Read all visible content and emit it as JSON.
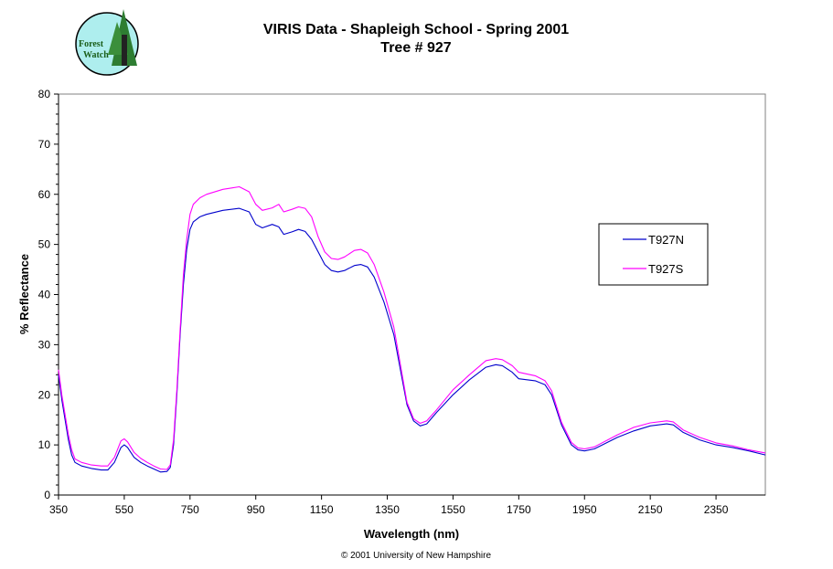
{
  "logo": {
    "line1": "Forest",
    "line2": "Watch",
    "icon": "forest-watch-logo"
  },
  "chart_data": {
    "type": "line",
    "title": "VIRIS Data - Shapleigh School - Spring 2001",
    "subtitle": "Tree # 927",
    "xlabel": "Wavelength (nm)",
    "ylabel": "% Reflectance",
    "xlim": [
      350,
      2500
    ],
    "ylim": [
      0,
      80
    ],
    "x_ticks": [
      350,
      550,
      750,
      950,
      1150,
      1350,
      1550,
      1750,
      1950,
      2150,
      2350
    ],
    "y_ticks": [
      0,
      10,
      20,
      30,
      40,
      50,
      60,
      70,
      80
    ],
    "grid": false,
    "legend_position": "right",
    "series": [
      {
        "name": "T927N",
        "color": "#0000cc",
        "points": [
          [
            350,
            24
          ],
          [
            360,
            19
          ],
          [
            370,
            15
          ],
          [
            380,
            11
          ],
          [
            390,
            8
          ],
          [
            400,
            6.5
          ],
          [
            420,
            5.8
          ],
          [
            450,
            5.3
          ],
          [
            480,
            5.0
          ],
          [
            500,
            5.0
          ],
          [
            520,
            6.5
          ],
          [
            540,
            9.5
          ],
          [
            550,
            10.0
          ],
          [
            560,
            9.5
          ],
          [
            580,
            7.5
          ],
          [
            600,
            6.5
          ],
          [
            620,
            5.8
          ],
          [
            640,
            5.2
          ],
          [
            660,
            4.6
          ],
          [
            680,
            4.7
          ],
          [
            690,
            5.5
          ],
          [
            700,
            10
          ],
          [
            710,
            20
          ],
          [
            720,
            32
          ],
          [
            730,
            42
          ],
          [
            740,
            49
          ],
          [
            750,
            53
          ],
          [
            760,
            54.5
          ],
          [
            780,
            55.5
          ],
          [
            800,
            56.0
          ],
          [
            850,
            56.8
          ],
          [
            900,
            57.2
          ],
          [
            930,
            56.5
          ],
          [
            950,
            54.0
          ],
          [
            970,
            53.3
          ],
          [
            1000,
            54.0
          ],
          [
            1020,
            53.5
          ],
          [
            1035,
            52.0
          ],
          [
            1060,
            52.5
          ],
          [
            1080,
            53.0
          ],
          [
            1100,
            52.6
          ],
          [
            1120,
            51.0
          ],
          [
            1140,
            48.5
          ],
          [
            1160,
            46.0
          ],
          [
            1180,
            44.8
          ],
          [
            1200,
            44.5
          ],
          [
            1220,
            44.8
          ],
          [
            1250,
            45.8
          ],
          [
            1270,
            46.0
          ],
          [
            1290,
            45.5
          ],
          [
            1310,
            43.5
          ],
          [
            1340,
            38.5
          ],
          [
            1370,
            32.0
          ],
          [
            1390,
            25.0
          ],
          [
            1410,
            18.0
          ],
          [
            1430,
            14.8
          ],
          [
            1450,
            13.8
          ],
          [
            1470,
            14.2
          ],
          [
            1500,
            16.5
          ],
          [
            1550,
            20.0
          ],
          [
            1600,
            23.0
          ],
          [
            1650,
            25.5
          ],
          [
            1680,
            26.0
          ],
          [
            1700,
            25.8
          ],
          [
            1730,
            24.5
          ],
          [
            1750,
            23.2
          ],
          [
            1800,
            22.8
          ],
          [
            1830,
            22.0
          ],
          [
            1850,
            20.0
          ],
          [
            1880,
            14.0
          ],
          [
            1910,
            10.0
          ],
          [
            1930,
            9.0
          ],
          [
            1950,
            8.8
          ],
          [
            1980,
            9.2
          ],
          [
            2050,
            11.5
          ],
          [
            2100,
            12.8
          ],
          [
            2150,
            13.8
          ],
          [
            2200,
            14.2
          ],
          [
            2220,
            14.0
          ],
          [
            2250,
            12.5
          ],
          [
            2300,
            11.0
          ],
          [
            2350,
            10.0
          ],
          [
            2400,
            9.5
          ],
          [
            2450,
            8.8
          ],
          [
            2500,
            8.0
          ]
        ]
      },
      {
        "name": "T927S",
        "color": "#ff00ff",
        "points": [
          [
            350,
            25
          ],
          [
            360,
            20
          ],
          [
            370,
            16
          ],
          [
            380,
            12
          ],
          [
            390,
            9
          ],
          [
            400,
            7.2
          ],
          [
            420,
            6.5
          ],
          [
            450,
            6.0
          ],
          [
            480,
            5.8
          ],
          [
            500,
            5.8
          ],
          [
            520,
            7.5
          ],
          [
            540,
            10.8
          ],
          [
            550,
            11.2
          ],
          [
            560,
            10.6
          ],
          [
            580,
            8.5
          ],
          [
            600,
            7.3
          ],
          [
            620,
            6.5
          ],
          [
            640,
            5.8
          ],
          [
            660,
            5.2
          ],
          [
            680,
            5.1
          ],
          [
            690,
            6.0
          ],
          [
            700,
            11
          ],
          [
            710,
            21
          ],
          [
            720,
            33
          ],
          [
            730,
            44
          ],
          [
            740,
            51
          ],
          [
            750,
            56
          ],
          [
            760,
            58
          ],
          [
            780,
            59.3
          ],
          [
            800,
            60.0
          ],
          [
            850,
            61.0
          ],
          [
            900,
            61.5
          ],
          [
            930,
            60.5
          ],
          [
            950,
            58.0
          ],
          [
            970,
            56.8
          ],
          [
            1000,
            57.3
          ],
          [
            1020,
            58.0
          ],
          [
            1035,
            56.5
          ],
          [
            1060,
            57.0
          ],
          [
            1080,
            57.5
          ],
          [
            1100,
            57.2
          ],
          [
            1120,
            55.5
          ],
          [
            1140,
            51.5
          ],
          [
            1160,
            48.5
          ],
          [
            1180,
            47.2
          ],
          [
            1200,
            47.0
          ],
          [
            1220,
            47.5
          ],
          [
            1250,
            48.8
          ],
          [
            1270,
            49.0
          ],
          [
            1290,
            48.3
          ],
          [
            1310,
            46.0
          ],
          [
            1340,
            40.5
          ],
          [
            1370,
            33.5
          ],
          [
            1390,
            26.0
          ],
          [
            1410,
            18.5
          ],
          [
            1430,
            15.2
          ],
          [
            1450,
            14.3
          ],
          [
            1470,
            14.8
          ],
          [
            1500,
            17.0
          ],
          [
            1550,
            21.0
          ],
          [
            1600,
            24.0
          ],
          [
            1650,
            26.8
          ],
          [
            1680,
            27.2
          ],
          [
            1700,
            27.0
          ],
          [
            1730,
            25.8
          ],
          [
            1750,
            24.5
          ],
          [
            1800,
            23.8
          ],
          [
            1830,
            22.8
          ],
          [
            1850,
            20.8
          ],
          [
            1880,
            14.5
          ],
          [
            1910,
            10.5
          ],
          [
            1930,
            9.4
          ],
          [
            1950,
            9.2
          ],
          [
            1980,
            9.6
          ],
          [
            2050,
            12.0
          ],
          [
            2100,
            13.5
          ],
          [
            2150,
            14.4
          ],
          [
            2200,
            14.8
          ],
          [
            2220,
            14.6
          ],
          [
            2250,
            13.0
          ],
          [
            2300,
            11.5
          ],
          [
            2350,
            10.4
          ],
          [
            2400,
            9.8
          ],
          [
            2450,
            9.0
          ],
          [
            2500,
            8.4
          ]
        ]
      }
    ]
  },
  "footer": {
    "copyright": "© 2001 University of New Hampshire"
  }
}
